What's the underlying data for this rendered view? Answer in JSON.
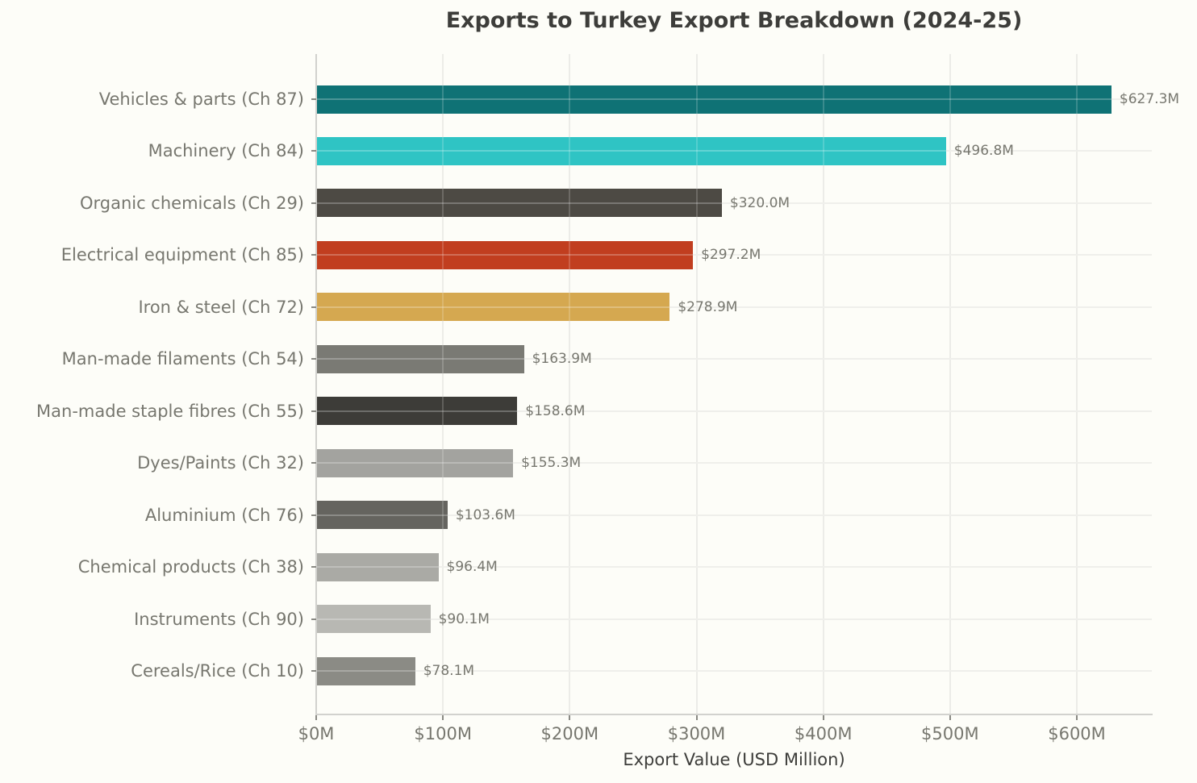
{
  "chart_data": {
    "type": "bar",
    "orientation": "horizontal",
    "title": "Exports to Turkey Export Breakdown (2024-25)",
    "xlabel": "Export Value (USD Million)",
    "ylabel": "",
    "xlim": [
      0,
      659
    ],
    "grid": true,
    "legend": null,
    "x_ticks": [
      0,
      100,
      200,
      300,
      400,
      500,
      600
    ],
    "x_tick_labels": [
      "$0M",
      "$100M",
      "$200M",
      "$300M",
      "$400M",
      "$500M",
      "$600M"
    ],
    "categories": [
      "Vehicles & parts (Ch 87)",
      "Machinery (Ch 84)",
      "Organic chemicals (Ch 29)",
      "Electrical equipment (Ch 85)",
      "Iron & steel (Ch 72)",
      "Man-made filaments (Ch 54)",
      "Man-made staple fibres (Ch 55)",
      "Dyes/Paints (Ch 32)",
      "Aluminium (Ch 76)",
      "Chemical products (Ch 38)",
      "Instruments (Ch 90)",
      "Cereals/Rice (Ch 10)"
    ],
    "values": [
      627.3,
      496.8,
      320.0,
      297.2,
      278.9,
      163.9,
      158.6,
      155.3,
      103.6,
      96.4,
      90.1,
      78.1
    ],
    "value_labels": [
      "$627.3M",
      "$496.8M",
      "$320.0M",
      "$297.2M",
      "$278.9M",
      "$163.9M",
      "$158.6M",
      "$155.3M",
      "$103.6M",
      "$96.4M",
      "$90.1M",
      "$78.1M"
    ],
    "colors": [
      "#0f7275",
      "#2fc4c4",
      "#4d4a44",
      "#c13e1f",
      "#d5a850",
      "#7a7a74",
      "#3d3c38",
      "#a3a39f",
      "#65645f",
      "#aaaaa5",
      "#b8b8b3",
      "#8b8b85"
    ]
  }
}
